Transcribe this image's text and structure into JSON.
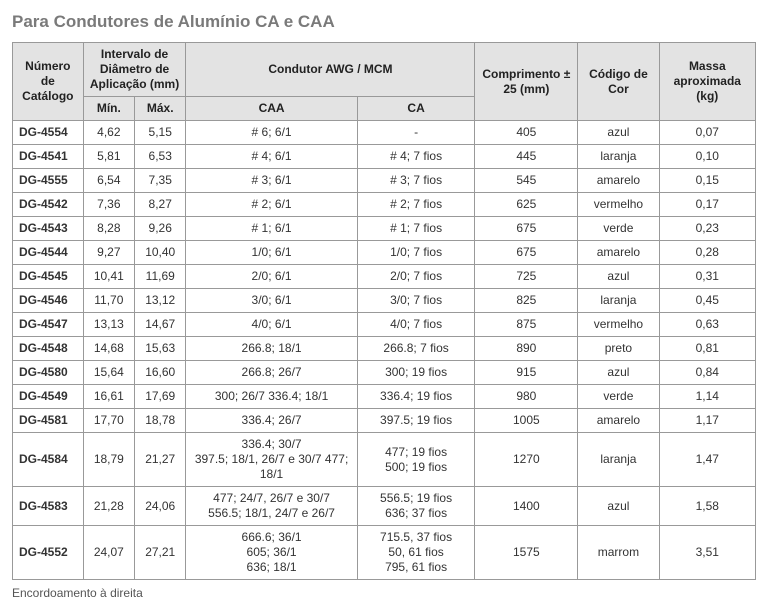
{
  "title": "Para Condutores de Alumínio CA e CAA",
  "footnote": "Encordoamento à direita",
  "headers": {
    "catalogo": "Número de Catálogo",
    "intervalo": "Intervalo de Diâmetro de Aplicação (mm)",
    "min": "Mín.",
    "max": "Máx.",
    "condutor": "Condutor AWG / MCM",
    "caa": "CAA",
    "ca": "CA",
    "comprimento": "Comprimento ± 25 (mm)",
    "cor": "Código de Cor",
    "massa": "Massa aproximada (kg)"
  },
  "rows": [
    {
      "cat": "DG-4554",
      "min": "4,62",
      "max": "5,15",
      "caa": "# 6; 6/1",
      "ca": "-",
      "comp": "405",
      "cor": "azul",
      "mass": "0,07"
    },
    {
      "cat": "DG-4541",
      "min": "5,81",
      "max": "6,53",
      "caa": "# 4; 6/1",
      "ca": "# 4; 7 fios",
      "comp": "445",
      "cor": "laranja",
      "mass": "0,10"
    },
    {
      "cat": "DG-4555",
      "min": "6,54",
      "max": "7,35",
      "caa": "# 3; 6/1",
      "ca": "# 3; 7 fios",
      "comp": "545",
      "cor": "amarelo",
      "mass": "0,15"
    },
    {
      "cat": "DG-4542",
      "min": "7,36",
      "max": "8,27",
      "caa": "# 2; 6/1",
      "ca": "# 2; 7 fios",
      "comp": "625",
      "cor": "vermelho",
      "mass": "0,17"
    },
    {
      "cat": "DG-4543",
      "min": "8,28",
      "max": "9,26",
      "caa": "# 1; 6/1",
      "ca": "# 1; 7 fios",
      "comp": "675",
      "cor": "verde",
      "mass": "0,23"
    },
    {
      "cat": "DG-4544",
      "min": "9,27",
      "max": "10,40",
      "caa": "1/0; 6/1",
      "ca": "1/0; 7 fios",
      "comp": "675",
      "cor": "amarelo",
      "mass": "0,28"
    },
    {
      "cat": "DG-4545",
      "min": "10,41",
      "max": "11,69",
      "caa": "2/0; 6/1",
      "ca": "2/0; 7 fios",
      "comp": "725",
      "cor": "azul",
      "mass": "0,31"
    },
    {
      "cat": "DG-4546",
      "min": "11,70",
      "max": "13,12",
      "caa": "3/0; 6/1",
      "ca": "3/0; 7 fios",
      "comp": "825",
      "cor": "laranja",
      "mass": "0,45"
    },
    {
      "cat": "DG-4547",
      "min": "13,13",
      "max": "14,67",
      "caa": "4/0; 6/1",
      "ca": "4/0; 7 fios",
      "comp": "875",
      "cor": "vermelho",
      "mass": "0,63"
    },
    {
      "cat": "DG-4548",
      "min": "14,68",
      "max": "15,63",
      "caa": "266.8; 18/1",
      "ca": "266.8; 7 fios",
      "comp": "890",
      "cor": "preto",
      "mass": "0,81"
    },
    {
      "cat": "DG-4580",
      "min": "15,64",
      "max": "16,60",
      "caa": "266.8; 26/7",
      "ca": "300; 19 fios",
      "comp": "915",
      "cor": "azul",
      "mass": "0,84"
    },
    {
      "cat": "DG-4549",
      "min": "16,61",
      "max": "17,69",
      "caa": "300; 26/7 336.4; 18/1",
      "ca": "336.4; 19 fios",
      "comp": "980",
      "cor": "verde",
      "mass": "1,14"
    },
    {
      "cat": "DG-4581",
      "min": "17,70",
      "max": "18,78",
      "caa": "336.4; 26/7",
      "ca": "397.5; 19 fios",
      "comp": "1005",
      "cor": "amarelo",
      "mass": "1,17"
    },
    {
      "cat": "DG-4584",
      "min": "18,79",
      "max": "21,27",
      "caa": "336.4; 30/7\n397.5; 18/1, 26/7 e 30/7  477; 18/1",
      "ca": "477; 19 fios\n500; 19 fios",
      "comp": "1270",
      "cor": "laranja",
      "mass": "1,47"
    },
    {
      "cat": "DG-4583",
      "min": "21,28",
      "max": "24,06",
      "caa": "477;  24/7, 26/7 e 30/7\n556.5; 18/1, 24/7 e 26/7",
      "ca": "556.5; 19 fios\n636; 37 fios",
      "comp": "1400",
      "cor": "azul",
      "mass": "1,58"
    },
    {
      "cat": "DG-4552",
      "min": "24,07",
      "max": "27,21",
      "caa": "666.6; 36/1\n605; 36/1\n636; 18/1",
      "ca": "715.5, 37 fios\n50, 61 fios\n795, 61 fios",
      "comp": "1575",
      "cor": "marrom",
      "mass": "3,51"
    }
  ],
  "style": {
    "header_bg": "#e3e3e3",
    "border_color": "#999999",
    "title_color": "#7a7a7a",
    "font_size_body": 12,
    "font_size_title": 17
  }
}
